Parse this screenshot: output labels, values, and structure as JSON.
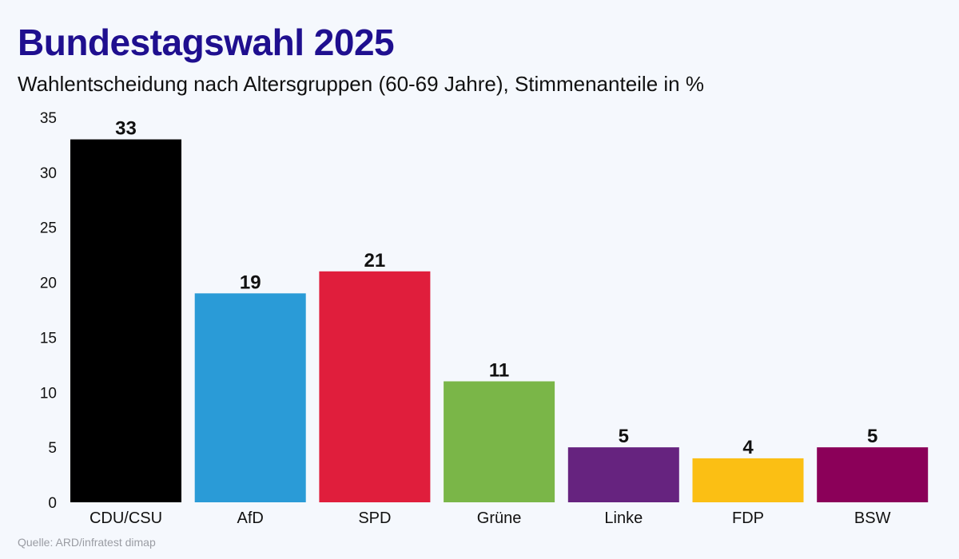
{
  "header": {
    "title": "Bundestagswahl 2025",
    "subtitle": "Wahlentscheidung nach Altersgruppen (60-69 Jahre), Stimmenanteile in %"
  },
  "footer": {
    "source": "Quelle: ARD/infratest dimap"
  },
  "chart_data": {
    "type": "bar",
    "title": "Bundestagswahl 2025",
    "subtitle": "Wahlentscheidung nach Altersgruppen (60-69 Jahre), Stimmenanteile in %",
    "xlabel": "",
    "ylabel": "",
    "categories": [
      "CDU/CSU",
      "AfD",
      "SPD",
      "Grüne",
      "Linke",
      "FDP",
      "BSW"
    ],
    "values": [
      33,
      19,
      21,
      11,
      5,
      4,
      5
    ],
    "colors": [
      "#000000",
      "#2a9bd7",
      "#e01e3c",
      "#7ab648",
      "#66237f",
      "#fbbf14",
      "#8b0059"
    ],
    "ylim": [
      0,
      35
    ],
    "yticks": [
      0,
      5,
      10,
      15,
      20,
      25,
      30,
      35
    ],
    "grid": false,
    "legend": "none",
    "data_labels": true
  }
}
